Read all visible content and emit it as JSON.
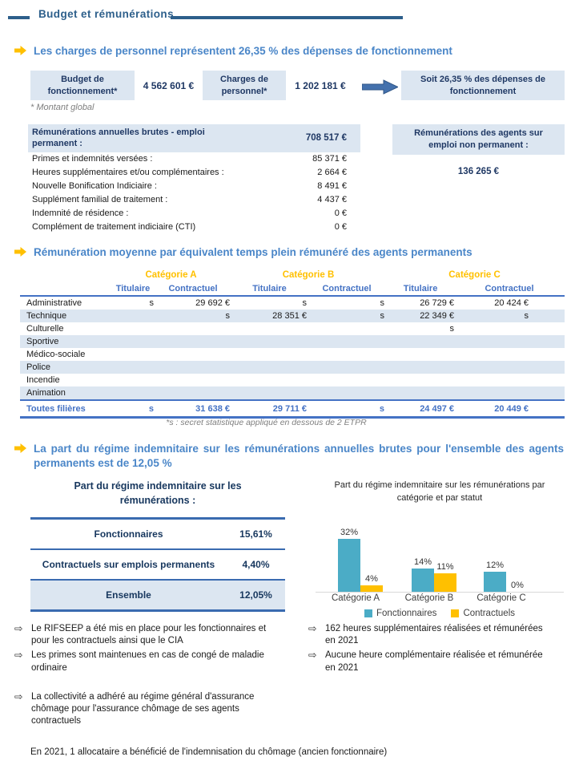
{
  "title": "Budget et rémunérations",
  "section1": {
    "heading": "Les charges de personnel représentent 26,35 % des dépenses de fonctionnement",
    "budget_label": "Budget de fonctionnement*",
    "budget_value": "4 562 601 €",
    "charges_label": "Charges de personnel*",
    "charges_value": "1 202 181 €",
    "result_label": "Soit 26,35 % des dépenses de fonctionnement",
    "global_note": "* Montant global",
    "perm_header_label": "Rémunérations annuelles brutes - emploi permanent :",
    "perm_header_value": "708 517 €",
    "perm_rows": [
      {
        "label": "Primes et indemnités versées :",
        "value": "85 371 €"
      },
      {
        "label": "Heures supplémentaires et/ou complémentaires :",
        "value": "2 664 €"
      },
      {
        "label": "Nouvelle Bonification Indiciaire :",
        "value": "8 491 €"
      },
      {
        "label": "Supplément familial de traitement :",
        "value": "4 437 €"
      },
      {
        "label": "Indemnité de résidence :",
        "value": "0 €"
      },
      {
        "label": "Complément de traitement indiciaire (CTI)",
        "value": "0 €"
      }
    ],
    "nonperm_label": "Rémunérations des agents sur emploi non permanent :",
    "nonperm_value": "136 265 €"
  },
  "section2": {
    "heading": "Rémunération moyenne par équivalent temps plein rémunéré des agents permanents",
    "groups": [
      "Catégorie A",
      "Catégorie B",
      "Catégorie C"
    ],
    "subheaders": [
      "Titulaire",
      "Contractuel"
    ],
    "rows": [
      {
        "label": "Administrative",
        "c1": "s",
        "c2": "29 692 €",
        "c3": "s",
        "c4": "s",
        "c5": "26 729 €",
        "c6": "20 424 €"
      },
      {
        "label": "Technique",
        "c1": "",
        "c2": "s",
        "c3": "28 351 €",
        "c4": "s",
        "c5": "22 349 €",
        "c6": "s"
      },
      {
        "label": "Culturelle",
        "c1": "",
        "c2": "",
        "c3": "",
        "c4": "",
        "c5": "s",
        "c6": ""
      },
      {
        "label": "Sportive",
        "c1": "",
        "c2": "",
        "c3": "",
        "c4": "",
        "c5": "",
        "c6": ""
      },
      {
        "label": "Médico-sociale",
        "c1": "",
        "c2": "",
        "c3": "",
        "c4": "",
        "c5": "",
        "c6": ""
      },
      {
        "label": "Police",
        "c1": "",
        "c2": "",
        "c3": "",
        "c4": "",
        "c5": "",
        "c6": ""
      },
      {
        "label": "Incendie",
        "c1": "",
        "c2": "",
        "c3": "",
        "c4": "",
        "c5": "",
        "c6": ""
      },
      {
        "label": "Animation",
        "c1": "",
        "c2": "",
        "c3": "",
        "c4": "",
        "c5": "",
        "c6": ""
      }
    ],
    "total": {
      "label": "Toutes filières",
      "c1": "s",
      "c2": "31 638 €",
      "c3": "29 711 €",
      "c4": "s",
      "c5": "24 497 €",
      "c6": "20 449 €"
    },
    "footnote": "*s : secret statistique appliqué en dessous de 2 ETPR"
  },
  "section3": {
    "heading": "La part du régime indemnitaire sur les rémunérations annuelles brutes pour l'ensemble des agents permanents est de 12,05 %",
    "part_title": "Part du régime indemnitaire sur les rémunérations :",
    "part_rows": [
      {
        "label": "Fonctionnaires",
        "value": "15,61%"
      },
      {
        "label": "Contractuels sur emplois permanents",
        "value": "4,40%"
      },
      {
        "label": "Ensemble",
        "value": "12,05%"
      }
    ]
  },
  "chart_data": {
    "type": "bar",
    "title": "Part du régime indemnitaire sur les rémunérations par catégorie et par statut",
    "categories": [
      "Catégorie A",
      "Catégorie B",
      "Catégorie C"
    ],
    "series": [
      {
        "name": "Fonctionnaires",
        "values": [
          32,
          14,
          12
        ],
        "labels": [
          "32%",
          "14%",
          "12%"
        ],
        "color": "#4BACC6"
      },
      {
        "name": "Contractuels",
        "values": [
          4,
          11,
          0
        ],
        "labels": [
          "4%",
          "11%",
          "0%"
        ],
        "color": "#FFC000"
      }
    ],
    "unit": "%",
    "ylim": [
      0,
      35
    ],
    "grid": false,
    "legend_position": "bottom"
  },
  "notes": {
    "bullet": "⇨",
    "left": [
      "Le RIFSEEP a été mis en place pour les fonctionnaires et\npour les contractuels ainsi que le CIA",
      "Les primes sont maintenues en cas de congé de maladie\nordinaire",
      "La collectivité a adhéré au régime général d'assurance\nchômage pour l'assurance chômage de ses agents\ncontractuels"
    ],
    "right": [
      "162 heures supplémentaires réalisées et rémunérées\nen 2021",
      "Aucune heure complémentaire réalisée et rémunérée\nen 2021"
    ],
    "closing": "En 2021, 1 allocataire a bénéficié de l'indemnisation du chômage (ancien fonctionnaire)"
  },
  "colors": {
    "title_blue": "#2D5F8B",
    "heading_blue": "#4A86C8",
    "navy_text": "#1F3864",
    "light_blue_fill": "#DCE6F1",
    "table_blue": "#4472C4",
    "category_yellow": "#FFC000",
    "bar_teal": "#4BACC6",
    "bar_yellow": "#FFC000",
    "footnote_gray": "#7F7F7F"
  }
}
